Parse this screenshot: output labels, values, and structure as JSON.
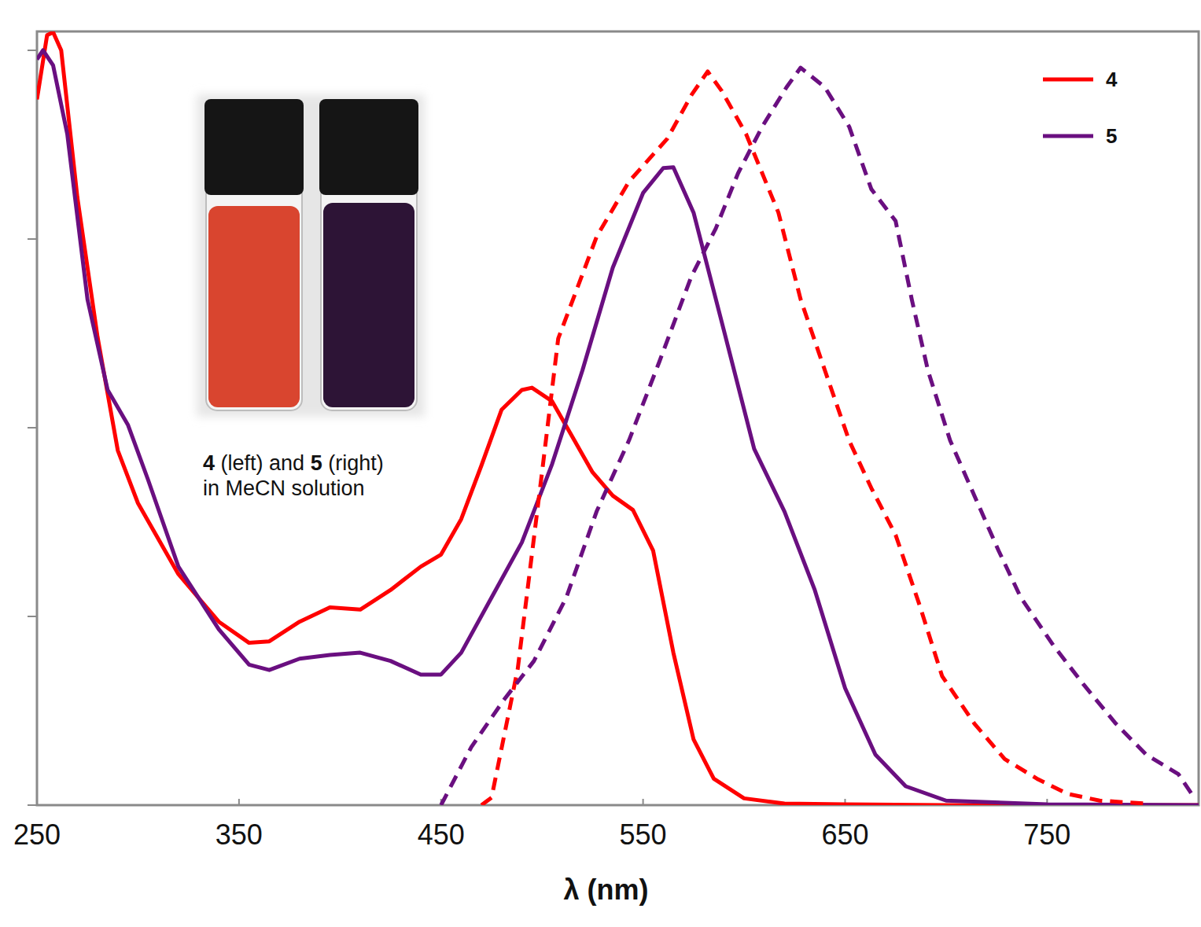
{
  "chart_data": {
    "type": "line",
    "x_label": "λ (nm)",
    "xlim": [
      250,
      825
    ],
    "xticks": [
      250,
      350,
      450,
      550,
      650,
      750
    ],
    "ylim": [
      0,
      1.025
    ],
    "yticks": [
      0,
      0.25,
      0.5,
      0.75,
      1
    ],
    "tick_labels": "x",
    "legend": "top-right",
    "annotations": [
      "4 (left) and 5 (right)",
      "in MeCN solution"
    ],
    "series": [
      {
        "name": "4",
        "color": "#ff0000",
        "line_style": "solid",
        "x": [
          250,
          255,
          258,
          262,
          270,
          280,
          290,
          300,
          320,
          340,
          355,
          365,
          380,
          395,
          410,
          425,
          440,
          450,
          460,
          470,
          480,
          490,
          495,
          505,
          515,
          525,
          535,
          545,
          555,
          565,
          575,
          585,
          600,
          620,
          650,
          700,
          825
        ],
        "values": [
          0.935,
          1.02,
          1.024,
          1.0,
          0.805,
          0.62,
          0.47,
          0.4,
          0.306,
          0.243,
          0.215,
          0.217,
          0.243,
          0.262,
          0.259,
          0.285,
          0.316,
          0.332,
          0.379,
          0.45,
          0.524,
          0.55,
          0.553,
          0.535,
          0.488,
          0.441,
          0.41,
          0.391,
          0.337,
          0.202,
          0.087,
          0.035,
          0.009,
          0.002,
          0.001,
          0,
          0
        ]
      },
      {
        "name": "5",
        "color": "#6a0f80",
        "line_style": "solid",
        "x": [
          250,
          253,
          258,
          265,
          275,
          285,
          295,
          305,
          320,
          340,
          355,
          365,
          380,
          395,
          410,
          425,
          440,
          450,
          460,
          475,
          490,
          505,
          520,
          535,
          550,
          560,
          565,
          575,
          590,
          605,
          620,
          635,
          650,
          665,
          680,
          700,
          750,
          825
        ],
        "values": [
          0.988,
          1.0,
          0.98,
          0.889,
          0.67,
          0.55,
          0.504,
          0.431,
          0.316,
          0.233,
          0.186,
          0.179,
          0.194,
          0.199,
          0.202,
          0.191,
          0.173,
          0.173,
          0.202,
          0.275,
          0.348,
          0.452,
          0.576,
          0.712,
          0.811,
          0.844,
          0.845,
          0.785,
          0.629,
          0.472,
          0.389,
          0.285,
          0.155,
          0.067,
          0.025,
          0.006,
          0.001,
          0
        ]
      },
      {
        "name": "4",
        "color": "#ff0000",
        "line_style": "dashed",
        "x": [
          470,
          475,
          488,
          500,
          508,
          527,
          543,
          562,
          574,
          582,
          589,
          601,
          617,
          628,
          640,
          652,
          663,
          675,
          687,
          698,
          714,
          729,
          745,
          760,
          776,
          799
        ],
        "values": [
          0,
          0.01,
          0.181,
          0.441,
          0.618,
          0.753,
          0.826,
          0.883,
          0.941,
          0.972,
          0.946,
          0.889,
          0.785,
          0.67,
          0.576,
          0.483,
          0.42,
          0.358,
          0.264,
          0.171,
          0.108,
          0.061,
          0.035,
          0.015,
          0.006,
          0.002
        ]
      },
      {
        "name": "5",
        "color": "#6a0f80",
        "line_style": "dashed",
        "x": [
          450,
          465,
          481,
          496,
          512,
          527,
          543,
          558,
          574,
          586,
          597,
          609,
          621,
          628,
          640,
          652,
          663,
          675,
          683,
          691,
          702,
          714,
          726,
          737,
          753,
          768,
          784,
          799,
          815,
          823
        ],
        "values": [
          0,
          0.077,
          0.139,
          0.191,
          0.275,
          0.389,
          0.483,
          0.587,
          0.701,
          0.764,
          0.837,
          0.899,
          0.951,
          0.977,
          0.951,
          0.899,
          0.816,
          0.774,
          0.67,
          0.576,
          0.483,
          0.41,
          0.337,
          0.275,
          0.212,
          0.16,
          0.108,
          0.067,
          0.041,
          0.009
        ]
      }
    ]
  }
}
